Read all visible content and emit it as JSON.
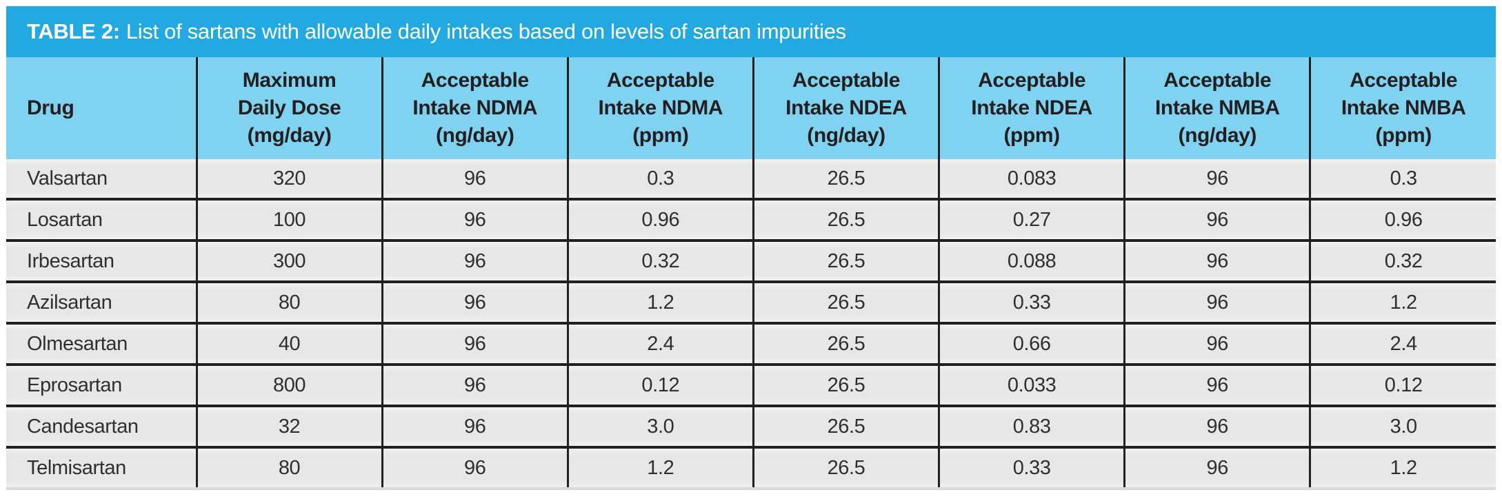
{
  "title": {
    "prefix": "TABLE 2:",
    "text": "List of sartans with allowable daily intakes based on levels of sartan impurities"
  },
  "colors": {
    "title_bar": "#22A9E1",
    "header_bg": "#7FD2F0",
    "row_bg": "#E6E7E7",
    "grid": "#231F20",
    "title_text": "#FFFFFF",
    "header_text": "#231F20",
    "cell_text": "#2F2F30",
    "bottom_edge": "#D8D9D9"
  },
  "table": {
    "header_lines": [
      [
        "Drug"
      ],
      [
        "Maximum",
        "Daily Dose",
        "(mg/day)"
      ],
      [
        "Acceptable",
        "Intake NDMA",
        "(ng/day)"
      ],
      [
        "Acceptable",
        "Intake NDMA",
        "(ppm)"
      ],
      [
        "Acceptable",
        "Intake NDEA",
        "(ng/day)"
      ],
      [
        "Acceptable",
        "Intake NDEA",
        "(ppm)"
      ],
      [
        "Acceptable",
        "Intake NMBA",
        "(ng/day)"
      ],
      [
        "Acceptable",
        "Intake NMBA",
        "(ppm)"
      ]
    ],
    "rows": [
      [
        "Valsartan",
        "320",
        "96",
        "0.3",
        "26.5",
        "0.083",
        "96",
        "0.3"
      ],
      [
        "Losartan",
        "100",
        "96",
        "0.96",
        "26.5",
        "0.27",
        "96",
        "0.96"
      ],
      [
        "Irbesartan",
        "300",
        "96",
        "0.32",
        "26.5",
        "0.088",
        "96",
        "0.32"
      ],
      [
        "Azilsartan",
        "80",
        "96",
        "1.2",
        "26.5",
        "0.33",
        "96",
        "1.2"
      ],
      [
        "Olmesartan",
        "40",
        "96",
        "2.4",
        "26.5",
        "0.66",
        "96",
        "2.4"
      ],
      [
        "Eprosartan",
        "800",
        "96",
        "0.12",
        "26.5",
        "0.033",
        "96",
        "0.12"
      ],
      [
        "Candesartan",
        "32",
        "96",
        "3.0",
        "26.5",
        "0.83",
        "96",
        "3.0"
      ],
      [
        "Telmisartan",
        "80",
        "96",
        "1.2",
        "26.5",
        "0.33",
        "96",
        "1.2"
      ]
    ]
  },
  "chart_data": {
    "type": "table",
    "title": "TABLE 2: List of sartans with allowable daily intakes based on levels of sartan impurities",
    "columns": [
      "Drug",
      "Maximum Daily Dose (mg/day)",
      "Acceptable Intake NDMA (ng/day)",
      "Acceptable Intake NDMA (ppm)",
      "Acceptable Intake NDEA (ng/day)",
      "Acceptable Intake NDEA (ppm)",
      "Acceptable Intake NMBA (ng/day)",
      "Acceptable Intake NMBA (ppm)"
    ],
    "rows": [
      [
        "Valsartan",
        320,
        96,
        0.3,
        26.5,
        0.083,
        96,
        0.3
      ],
      [
        "Losartan",
        100,
        96,
        0.96,
        26.5,
        0.27,
        96,
        0.96
      ],
      [
        "Irbesartan",
        300,
        96,
        0.32,
        26.5,
        0.088,
        96,
        0.32
      ],
      [
        "Azilsartan",
        80,
        96,
        1.2,
        26.5,
        0.33,
        96,
        1.2
      ],
      [
        "Olmesartan",
        40,
        96,
        2.4,
        26.5,
        0.66,
        96,
        2.4
      ],
      [
        "Eprosartan",
        800,
        96,
        0.12,
        26.5,
        0.033,
        96,
        0.12
      ],
      [
        "Candesartan",
        32,
        96,
        3.0,
        26.5,
        0.83,
        96,
        3.0
      ],
      [
        "Telmisartan",
        80,
        96,
        1.2,
        26.5,
        0.33,
        96,
        1.2
      ]
    ],
    "display_formats": {
      "NDMA_ppm_candesartan": "3.0",
      "NMBA_ppm_candesartan": "3.0"
    },
    "grid": true,
    "header_bg": "#7FD2F0",
    "title_bg": "#22A9E1"
  }
}
